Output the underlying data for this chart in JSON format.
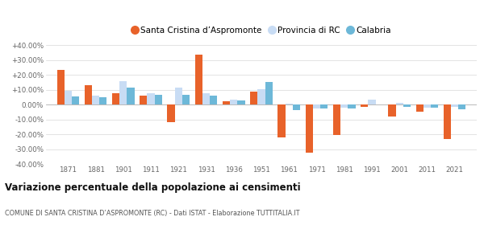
{
  "years": [
    1871,
    1881,
    1901,
    1911,
    1921,
    1931,
    1936,
    1951,
    1961,
    1971,
    1981,
    1991,
    2001,
    2011,
    2021
  ],
  "santa_cristina": [
    23.5,
    13.0,
    7.5,
    6.0,
    -12.0,
    33.5,
    2.5,
    8.5,
    -22.0,
    -32.0,
    -20.5,
    -1.5,
    -8.0,
    -5.0,
    -23.0
  ],
  "provincia_rc": [
    9.5,
    6.0,
    16.0,
    7.5,
    11.5,
    7.5,
    3.5,
    10.5,
    0.5,
    -2.5,
    -2.0,
    3.5,
    1.0,
    -2.0,
    -1.5
  ],
  "calabria": [
    5.5,
    5.0,
    11.5,
    6.5,
    6.5,
    6.0,
    3.0,
    15.0,
    -3.5,
    -2.5,
    -2.5,
    0.0,
    -1.5,
    -2.0,
    -3.0
  ],
  "color_santa": "#e8622a",
  "color_provincia": "#c8dcf4",
  "color_calabria": "#6db8d8",
  "title": "Variazione percentuale della popolazione ai censimenti",
  "subtitle": "COMUNE DI SANTA CRISTINA D’ASPROMONTE (RC) - Dati ISTAT - Elaborazione TUTTITALIA.IT",
  "legend_labels": [
    "Santa Cristina d’Aspromonte",
    "Provincia di RC",
    "Calabria"
  ],
  "ylim": [
    -40,
    40
  ],
  "yticks": [
    -40,
    -30,
    -20,
    -10,
    0,
    10,
    20,
    30,
    40
  ],
  "bar_width": 0.27,
  "background_color": "#ffffff",
  "grid_color": "#d8d8d8"
}
